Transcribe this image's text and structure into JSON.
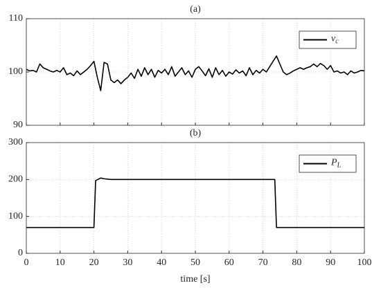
{
  "chart_data": [
    {
      "type": "line",
      "title": "(a)",
      "x": [
        0,
        1,
        2,
        3,
        4,
        5,
        6,
        7,
        8,
        9,
        10,
        11,
        12,
        13,
        14,
        15,
        16,
        17,
        18,
        19,
        20,
        21,
        22,
        23,
        24,
        25,
        26,
        27,
        28,
        29,
        30,
        31,
        32,
        33,
        34,
        35,
        36,
        37,
        38,
        39,
        40,
        41,
        42,
        43,
        44,
        45,
        46,
        47,
        48,
        49,
        50,
        51,
        52,
        53,
        54,
        55,
        56,
        57,
        58,
        59,
        60,
        61,
        62,
        63,
        64,
        65,
        66,
        67,
        68,
        69,
        70,
        71,
        72,
        73,
        74,
        75,
        76,
        77,
        78,
        79,
        80,
        81,
        82,
        83,
        84,
        85,
        86,
        87,
        88,
        89,
        90,
        91,
        92,
        93,
        94,
        95,
        96,
        97,
        98,
        99,
        100
      ],
      "series": [
        {
          "name": "v_c",
          "color": "#000000",
          "values": [
            100.5,
            100.2,
            100.3,
            100.0,
            101.5,
            100.8,
            100.5,
            100.2,
            100.0,
            100.3,
            100.0,
            100.8,
            99.5,
            99.8,
            99.3,
            100.2,
            99.5,
            100.0,
            100.5,
            101.2,
            102.0,
            99.0,
            96.5,
            101.8,
            101.5,
            98.5,
            98.0,
            98.5,
            97.8,
            98.5,
            99.0,
            99.8,
            98.8,
            100.5,
            99.2,
            100.8,
            99.5,
            100.5,
            99.0,
            100.3,
            99.8,
            100.5,
            99.5,
            101.0,
            99.2,
            100.0,
            100.8,
            99.5,
            100.2,
            99.0,
            100.5,
            101.0,
            100.2,
            99.3,
            100.6,
            99.0,
            100.8,
            99.5,
            100.3,
            99.2,
            100.0,
            99.6,
            100.4,
            99.8,
            100.2,
            99.3,
            100.8,
            99.5,
            100.3,
            99.8,
            100.5,
            100.0,
            101.0,
            102.0,
            103.0,
            101.5,
            100.0,
            99.5,
            99.8,
            100.2,
            100.5,
            100.8,
            100.5,
            100.8,
            101.0,
            101.5,
            101.0,
            101.6,
            101.2,
            100.5,
            101.2,
            100.0,
            100.2,
            99.8,
            100.0,
            99.5,
            100.2,
            99.8,
            100.0,
            100.3,
            100.2
          ]
        }
      ],
      "xlim": [
        0,
        100
      ],
      "xticks": [
        0,
        10,
        20,
        30,
        40,
        50,
        60,
        70,
        80,
        90,
        100
      ],
      "show_xtick_labels": false,
      "ylim": [
        90,
        110
      ],
      "yticks": [
        90,
        100,
        110
      ],
      "grid": true,
      "legend": "upper right"
    },
    {
      "type": "line",
      "title": "(b)",
      "xlabel": "time [s]",
      "x": [
        0,
        5,
        10,
        15,
        20,
        20.5,
        22,
        23,
        25,
        30,
        35,
        40,
        45,
        50,
        55,
        60,
        65,
        70,
        73.5,
        74,
        75,
        80,
        85,
        90,
        95,
        100
      ],
      "series": [
        {
          "name": "P_L",
          "color": "#000000",
          "values": [
            70,
            70,
            70,
            70,
            70,
            197,
            204,
            202,
            200,
            200,
            200,
            200,
            200,
            200,
            200,
            200,
            200,
            200,
            200,
            70,
            70,
            70,
            70,
            70,
            70,
            70
          ]
        }
      ],
      "xlim": [
        0,
        100
      ],
      "xticks": [
        0,
        10,
        20,
        30,
        40,
        50,
        60,
        70,
        80,
        90,
        100
      ],
      "show_xtick_labels": true,
      "ylim": [
        0,
        300
      ],
      "yticks": [
        0,
        100,
        200,
        300
      ],
      "grid": true,
      "legend": "upper right"
    }
  ]
}
